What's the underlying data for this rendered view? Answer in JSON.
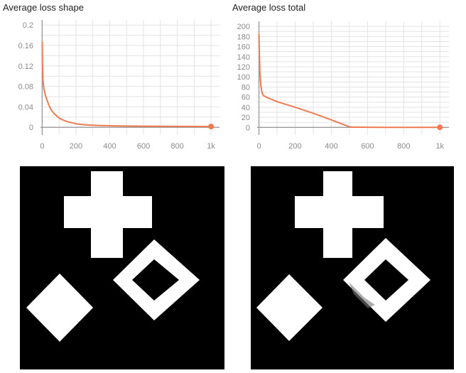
{
  "charts": [
    {
      "title": "Average loss shape"
    },
    {
      "title": "Average loss total"
    }
  ],
  "chart_data": [
    {
      "type": "line",
      "title": "Average loss shape",
      "xlabel": "",
      "ylabel": "",
      "xlim": [
        -10,
        1050
      ],
      "ylim": [
        -0.015,
        0.21
      ],
      "xticks": [
        0,
        200,
        400,
        600,
        800,
        1000
      ],
      "xtick_labels": [
        "0",
        "200",
        "400",
        "600",
        "800",
        "1k"
      ],
      "yticks": [
        0,
        0.04,
        0.08,
        0.12,
        0.16,
        0.2
      ],
      "ytick_labels": [
        "0",
        "0.04",
        "0.08",
        "0.12",
        "0.16",
        "0.2"
      ],
      "grid": true,
      "color": "#f07a50",
      "series": [
        {
          "x": [
            0,
            2,
            5,
            10,
            20,
            30,
            40,
            50,
            60,
            80,
            100,
            125,
            150,
            175,
            200,
            250,
            300,
            350,
            400,
            450,
            500,
            600,
            700,
            800,
            900,
            1000
          ],
          "values": [
            0.168,
            0.12,
            0.09,
            0.075,
            0.062,
            0.052,
            0.043,
            0.036,
            0.031,
            0.024,
            0.018,
            0.014,
            0.011,
            0.009,
            0.007,
            0.005,
            0.004,
            0.0035,
            0.003,
            0.0028,
            0.0025,
            0.0022,
            0.002,
            0.0018,
            0.0016,
            0.0015
          ]
        }
      ]
    },
    {
      "type": "line",
      "title": "Average loss total",
      "xlabel": "",
      "ylabel": "",
      "xlim": [
        -10,
        1050
      ],
      "ylim": [
        -15,
        210
      ],
      "xticks": [
        0,
        200,
        400,
        600,
        800,
        1000
      ],
      "xtick_labels": [
        "0",
        "200",
        "400",
        "600",
        "800",
        "1k"
      ],
      "yticks": [
        0,
        20,
        40,
        60,
        80,
        100,
        120,
        140,
        160,
        180,
        200
      ],
      "ytick_labels": [
        "0",
        "20",
        "40",
        "60",
        "80",
        "100",
        "120",
        "140",
        "160",
        "180",
        "200"
      ],
      "grid": true,
      "color": "#f07a50",
      "series": [
        {
          "x": [
            0,
            2,
            5,
            10,
            15,
            20,
            25,
            30,
            35,
            40,
            100,
            200,
            300,
            400,
            500,
            520,
            600,
            700,
            800,
            900,
            1000
          ],
          "values": [
            185,
            150,
            110,
            85,
            72,
            66,
            63,
            62,
            61,
            60,
            51,
            40,
            28,
            15,
            1,
            0.5,
            0.3,
            0.2,
            0.2,
            0.2,
            0.2
          ]
        }
      ]
    }
  ],
  "images": [
    {
      "name": "target-shapes-image"
    },
    {
      "name": "predicted-shapes-image"
    }
  ]
}
